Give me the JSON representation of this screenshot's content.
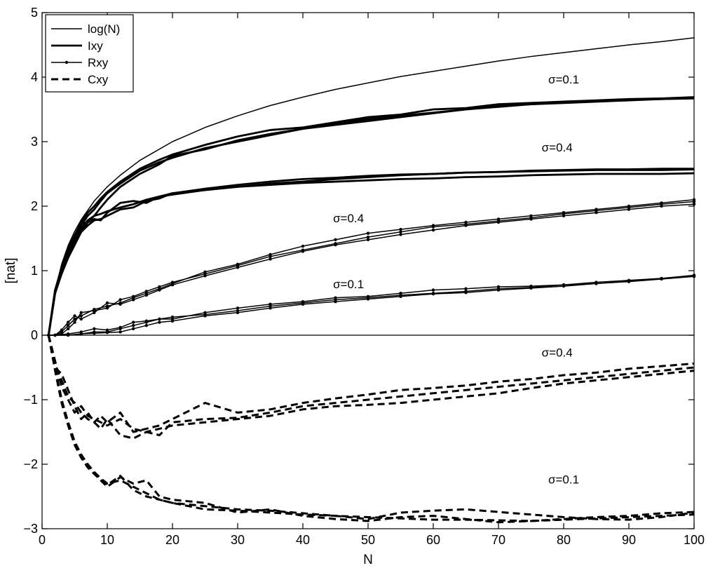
{
  "chart_data": {
    "type": "line",
    "title": "",
    "xlabel": "N",
    "ylabel": "[nat]",
    "xlim": [
      0,
      100
    ],
    "ylim": [
      -3,
      5
    ],
    "xticks": [
      0,
      10,
      20,
      30,
      40,
      50,
      60,
      70,
      80,
      90,
      100
    ],
    "yticks": [
      -3,
      -2,
      -1,
      0,
      1,
      2,
      3,
      4,
      5
    ],
    "ytick_labels": [
      "−3",
      "−2",
      "−1",
      "0",
      "1",
      "2",
      "3",
      "4",
      "5"
    ],
    "grid": false,
    "zero_line": true,
    "legend": {
      "position": "top-left",
      "entries": [
        {
          "label": "log(N)",
          "style": "thin"
        },
        {
          "label": "Ixy",
          "style": "thick"
        },
        {
          "label": "Rxy",
          "style": "dots"
        },
        {
          "label": "Cxy",
          "style": "dashed"
        }
      ]
    },
    "annotations": [
      {
        "text": "σ=0.1",
        "x": 80,
        "y": 3.9
      },
      {
        "text": "σ=0.4",
        "x": 79,
        "y": 2.85
      },
      {
        "text": "σ=0.4",
        "x": 47,
        "y": 1.75
      },
      {
        "text": "σ=0.1",
        "x": 47,
        "y": 0.73
      },
      {
        "text": "σ=0.4",
        "x": 79,
        "y": -0.33
      },
      {
        "text": "σ=0.1",
        "x": 80,
        "y": -2.3
      }
    ],
    "series": [
      {
        "name": "log(N)",
        "style": "thin",
        "x": [
          1,
          2,
          3,
          4,
          5,
          6,
          8,
          10,
          12,
          15,
          20,
          25,
          30,
          35,
          40,
          45,
          50,
          55,
          60,
          65,
          70,
          75,
          80,
          85,
          90,
          95,
          100
        ],
        "y": [
          0,
          0.69,
          1.1,
          1.39,
          1.61,
          1.79,
          2.08,
          2.3,
          2.48,
          2.71,
          3.0,
          3.22,
          3.4,
          3.56,
          3.69,
          3.81,
          3.91,
          4.01,
          4.09,
          4.17,
          4.25,
          4.32,
          4.38,
          4.44,
          4.5,
          4.55,
          4.61
        ]
      },
      {
        "style": "thick",
        "x": [
          1,
          2,
          3,
          4,
          5,
          6,
          7,
          8,
          9,
          10,
          12,
          15,
          18,
          20,
          25,
          30,
          35,
          40,
          45,
          50,
          55,
          60,
          65,
          70,
          75,
          80,
          85,
          90,
          95,
          100
        ],
        "y": [
          0,
          0.68,
          1.05,
          1.35,
          1.55,
          1.75,
          1.9,
          2.0,
          2.12,
          2.22,
          2.38,
          2.58,
          2.72,
          2.8,
          2.95,
          3.08,
          3.18,
          3.22,
          3.3,
          3.38,
          3.42,
          3.5,
          3.52,
          3.58,
          3.6,
          3.62,
          3.63,
          3.65,
          3.66,
          3.68
        ]
      },
      {
        "style": "thick",
        "x": [
          1,
          2,
          3,
          4,
          5,
          6,
          7,
          8,
          9,
          10,
          12,
          15,
          18,
          20,
          25,
          30,
          35,
          40,
          45,
          50,
          55,
          60,
          65,
          70,
          75,
          80,
          85,
          90,
          95,
          100
        ],
        "y": [
          0,
          0.7,
          1.0,
          1.28,
          1.5,
          1.7,
          1.85,
          1.95,
          2.08,
          2.2,
          2.35,
          2.55,
          2.68,
          2.75,
          2.9,
          3.0,
          3.1,
          3.2,
          3.28,
          3.35,
          3.4,
          3.45,
          3.5,
          3.55,
          3.58,
          3.6,
          3.62,
          3.64,
          3.66,
          3.67
        ]
      },
      {
        "style": "thick",
        "x": [
          1,
          2,
          3,
          4,
          5,
          6,
          7,
          8,
          9,
          10,
          12,
          15,
          18,
          20,
          25,
          30,
          35,
          40,
          45,
          50,
          55,
          60,
          65,
          70,
          75,
          80,
          85,
          90,
          95,
          100
        ],
        "y": [
          0,
          0.65,
          0.95,
          1.2,
          1.4,
          1.6,
          1.75,
          1.85,
          1.98,
          2.1,
          2.3,
          2.5,
          2.65,
          2.78,
          2.88,
          3.02,
          3.12,
          3.2,
          3.26,
          3.32,
          3.38,
          3.44,
          3.5,
          3.54,
          3.58,
          3.62,
          3.64,
          3.66,
          3.67,
          3.69
        ]
      },
      {
        "style": "thick",
        "x": [
          1,
          2,
          3,
          4,
          5,
          6,
          7,
          8,
          9,
          10,
          12,
          14,
          16,
          18,
          20,
          25,
          30,
          35,
          40,
          45,
          50,
          55,
          60,
          65,
          70,
          75,
          80,
          85,
          90,
          95,
          100
        ],
        "y": [
          0,
          0.7,
          1.05,
          1.3,
          1.5,
          1.65,
          1.78,
          1.85,
          1.88,
          1.92,
          1.98,
          2.03,
          2.1,
          2.15,
          2.2,
          2.27,
          2.33,
          2.38,
          2.42,
          2.44,
          2.47,
          2.49,
          2.5,
          2.52,
          2.53,
          2.54,
          2.55,
          2.56,
          2.56,
          2.56,
          2.57
        ]
      },
      {
        "style": "thick",
        "x": [
          1,
          2,
          3,
          4,
          5,
          6,
          7,
          8,
          9,
          10,
          12,
          14,
          16,
          18,
          20,
          25,
          30,
          35,
          40,
          45,
          50,
          55,
          60,
          65,
          70,
          75,
          80,
          85,
          90,
          95,
          100
        ],
        "y": [
          0,
          0.68,
          1.0,
          1.22,
          1.48,
          1.72,
          1.75,
          1.8,
          1.78,
          1.9,
          2.05,
          2.08,
          2.05,
          2.15,
          2.18,
          2.25,
          2.3,
          2.35,
          2.38,
          2.42,
          2.45,
          2.48,
          2.5,
          2.52,
          2.53,
          2.55,
          2.56,
          2.57,
          2.57,
          2.58,
          2.58
        ]
      },
      {
        "style": "thick",
        "x": [
          1,
          2,
          3,
          4,
          5,
          6,
          7,
          8,
          9,
          10,
          12,
          14,
          16,
          18,
          20,
          25,
          30,
          35,
          40,
          45,
          50,
          55,
          60,
          65,
          70,
          75,
          80,
          85,
          90,
          95,
          100
        ],
        "y": [
          0,
          0.65,
          0.98,
          1.2,
          1.45,
          1.6,
          1.7,
          1.78,
          1.8,
          1.85,
          1.95,
          1.98,
          2.08,
          2.12,
          2.2,
          2.25,
          2.3,
          2.33,
          2.36,
          2.38,
          2.4,
          2.42,
          2.43,
          2.45,
          2.46,
          2.48,
          2.49,
          2.5,
          2.5,
          2.5,
          2.51
        ]
      },
      {
        "style": "dots",
        "x": [
          1,
          2,
          3,
          4,
          5,
          6,
          8,
          10,
          12,
          14,
          16,
          18,
          20,
          25,
          30,
          35,
          40,
          45,
          50,
          55,
          60,
          65,
          70,
          75,
          80,
          85,
          90,
          95,
          100
        ],
        "y": [
          0,
          0,
          0.05,
          0.15,
          0.25,
          0.3,
          0.4,
          0.45,
          0.5,
          0.58,
          0.65,
          0.72,
          0.8,
          0.98,
          1.1,
          1.25,
          1.38,
          1.48,
          1.58,
          1.64,
          1.7,
          1.75,
          1.8,
          1.85,
          1.9,
          1.95,
          2.0,
          2.05,
          2.1
        ]
      },
      {
        "style": "dots",
        "x": [
          1,
          2,
          3,
          4,
          5,
          6,
          8,
          10,
          12,
          14,
          16,
          18,
          20,
          25,
          30,
          35,
          40,
          45,
          50,
          55,
          60,
          65,
          70,
          75,
          80,
          85,
          90,
          95,
          100
        ],
        "y": [
          0,
          0,
          0.02,
          0.1,
          0.2,
          0.35,
          0.38,
          0.42,
          0.55,
          0.6,
          0.68,
          0.75,
          0.82,
          0.95,
          1.08,
          1.22,
          1.32,
          1.42,
          1.52,
          1.6,
          1.68,
          1.72,
          1.77,
          1.82,
          1.88,
          1.93,
          1.98,
          2.03,
          2.07
        ]
      },
      {
        "style": "dots",
        "x": [
          1,
          2,
          3,
          4,
          5,
          6,
          8,
          10,
          12,
          14,
          16,
          18,
          20,
          25,
          30,
          35,
          40,
          45,
          50,
          55,
          60,
          65,
          70,
          75,
          80,
          85,
          90,
          95,
          100
        ],
        "y": [
          0,
          0,
          0.08,
          0.2,
          0.3,
          0.25,
          0.35,
          0.5,
          0.48,
          0.55,
          0.62,
          0.7,
          0.78,
          0.92,
          1.05,
          1.18,
          1.3,
          1.4,
          1.48,
          1.56,
          1.63,
          1.7,
          1.75,
          1.8,
          1.85,
          1.9,
          1.95,
          2.0,
          2.03
        ]
      },
      {
        "style": "dots",
        "x": [
          1,
          2,
          4,
          6,
          8,
          10,
          12,
          14,
          16,
          18,
          20,
          25,
          30,
          35,
          40,
          45,
          50,
          55,
          60,
          65,
          70,
          75,
          80,
          85,
          90,
          95,
          100
        ],
        "y": [
          0,
          0,
          0,
          0.02,
          0.05,
          0.05,
          0.1,
          0.15,
          0.2,
          0.25,
          0.28,
          0.32,
          0.38,
          0.45,
          0.5,
          0.55,
          0.58,
          0.62,
          0.65,
          0.68,
          0.72,
          0.74,
          0.78,
          0.8,
          0.84,
          0.88,
          0.93
        ]
      },
      {
        "style": "dots",
        "x": [
          1,
          2,
          4,
          6,
          8,
          10,
          12,
          14,
          16,
          18,
          20,
          25,
          30,
          35,
          40,
          45,
          50,
          55,
          60,
          65,
          70,
          75,
          80,
          85,
          90,
          95,
          100
        ],
        "y": [
          0,
          0,
          0.02,
          0.05,
          0.1,
          0.08,
          0.12,
          0.2,
          0.22,
          0.25,
          0.25,
          0.35,
          0.42,
          0.48,
          0.52,
          0.58,
          0.6,
          0.65,
          0.7,
          0.72,
          0.75,
          0.76,
          0.78,
          0.82,
          0.85,
          0.88,
          0.92
        ]
      },
      {
        "style": "dots",
        "x": [
          1,
          2,
          4,
          6,
          8,
          10,
          12,
          14,
          16,
          18,
          20,
          25,
          30,
          35,
          40,
          45,
          50,
          55,
          60,
          65,
          70,
          75,
          80,
          85,
          90,
          95,
          100
        ],
        "y": [
          0,
          0,
          0,
          0.02,
          0.03,
          0.04,
          0.05,
          0.1,
          0.15,
          0.2,
          0.22,
          0.3,
          0.35,
          0.42,
          0.48,
          0.52,
          0.56,
          0.6,
          0.64,
          0.66,
          0.7,
          0.73,
          0.76,
          0.8,
          0.83,
          0.87,
          0.91
        ]
      },
      {
        "style": "dashed",
        "x": [
          1,
          2,
          3,
          4,
          5,
          6,
          7,
          8,
          9,
          10,
          12,
          14,
          16,
          18,
          20,
          25,
          30,
          35,
          40,
          45,
          50,
          55,
          60,
          65,
          70,
          75,
          80,
          85,
          90,
          95,
          100
        ],
        "y": [
          0,
          -0.4,
          -0.8,
          -1.0,
          -1.2,
          -1.1,
          -1.25,
          -1.3,
          -1.35,
          -1.4,
          -1.3,
          -1.45,
          -1.5,
          -1.55,
          -1.35,
          -1.3,
          -1.28,
          -1.2,
          -1.1,
          -1.05,
          -1.0,
          -0.95,
          -0.9,
          -0.85,
          -0.8,
          -0.75,
          -0.7,
          -0.65,
          -0.6,
          -0.55,
          -0.5
        ]
      },
      {
        "style": "dashed",
        "x": [
          1,
          2,
          3,
          4,
          5,
          6,
          7,
          8,
          9,
          10,
          12,
          14,
          16,
          18,
          20,
          25,
          30,
          35,
          40,
          45,
          50,
          55,
          60,
          65,
          70,
          75,
          80,
          85,
          90,
          95,
          100
        ],
        "y": [
          0,
          -0.45,
          -0.7,
          -0.95,
          -1.05,
          -1.2,
          -1.3,
          -1.35,
          -1.25,
          -1.35,
          -1.2,
          -1.5,
          -1.45,
          -1.4,
          -1.3,
          -1.05,
          -1.2,
          -1.15,
          -1.05,
          -0.98,
          -0.92,
          -0.85,
          -0.82,
          -0.78,
          -0.72,
          -0.68,
          -0.62,
          -0.58,
          -0.52,
          -0.48,
          -0.44
        ]
      },
      {
        "style": "dashed",
        "x": [
          1,
          2,
          3,
          4,
          5,
          6,
          7,
          8,
          9,
          10,
          12,
          14,
          16,
          18,
          20,
          25,
          30,
          35,
          40,
          45,
          50,
          55,
          60,
          65,
          70,
          75,
          80,
          85,
          90,
          95,
          100
        ],
        "y": [
          0,
          -0.5,
          -0.6,
          -0.85,
          -1.1,
          -1.3,
          -1.2,
          -1.35,
          -1.45,
          -1.3,
          -1.55,
          -1.6,
          -1.5,
          -1.45,
          -1.4,
          -1.35,
          -1.3,
          -1.25,
          -1.15,
          -1.1,
          -1.08,
          -1.05,
          -1.0,
          -0.95,
          -0.9,
          -0.82,
          -0.75,
          -0.7,
          -0.65,
          -0.6,
          -0.55
        ]
      },
      {
        "style": "dashed",
        "x": [
          1,
          2,
          3,
          4,
          5,
          6,
          7,
          8,
          9,
          10,
          12,
          14,
          16,
          18,
          20,
          25,
          30,
          35,
          40,
          45,
          50,
          55,
          60,
          65,
          70,
          75,
          80,
          85,
          90,
          95,
          100
        ],
        "y": [
          0,
          -0.5,
          -1.0,
          -1.35,
          -1.65,
          -1.85,
          -2.0,
          -2.12,
          -2.22,
          -2.3,
          -2.25,
          -2.35,
          -2.45,
          -2.55,
          -2.6,
          -2.7,
          -2.72,
          -2.75,
          -2.78,
          -2.8,
          -2.82,
          -2.84,
          -2.86,
          -2.86,
          -2.87,
          -2.88,
          -2.86,
          -2.84,
          -2.82,
          -2.8,
          -2.78
        ]
      },
      {
        "style": "dashed",
        "x": [
          1,
          2,
          3,
          4,
          5,
          6,
          7,
          8,
          9,
          10,
          12,
          14,
          16,
          18,
          20,
          25,
          30,
          35,
          40,
          45,
          50,
          55,
          60,
          65,
          70,
          75,
          80,
          85,
          90,
          95,
          100
        ],
        "y": [
          0,
          -0.55,
          -1.05,
          -1.4,
          -1.7,
          -1.9,
          -2.05,
          -2.15,
          -2.25,
          -2.35,
          -2.2,
          -2.3,
          -2.25,
          -2.5,
          -2.55,
          -2.6,
          -2.75,
          -2.7,
          -2.8,
          -2.85,
          -2.88,
          -2.82,
          -2.8,
          -2.85,
          -2.9,
          -2.88,
          -2.85,
          -2.82,
          -2.8,
          -2.76,
          -2.74
        ]
      },
      {
        "style": "dashed",
        "x": [
          1,
          2,
          3,
          4,
          5,
          6,
          7,
          8,
          9,
          10,
          12,
          14,
          16,
          18,
          20,
          25,
          30,
          35,
          40,
          45,
          50,
          55,
          60,
          65,
          70,
          75,
          80,
          85,
          90,
          95,
          100
        ],
        "y": [
          0,
          -0.52,
          -1.0,
          -1.38,
          -1.68,
          -1.88,
          -2.02,
          -2.14,
          -2.24,
          -2.32,
          -2.18,
          -2.4,
          -2.5,
          -2.55,
          -2.6,
          -2.65,
          -2.7,
          -2.72,
          -2.76,
          -2.8,
          -2.85,
          -2.75,
          -2.72,
          -2.7,
          -2.74,
          -2.78,
          -2.82,
          -2.85,
          -2.86,
          -2.82,
          -2.75
        ]
      }
    ]
  }
}
